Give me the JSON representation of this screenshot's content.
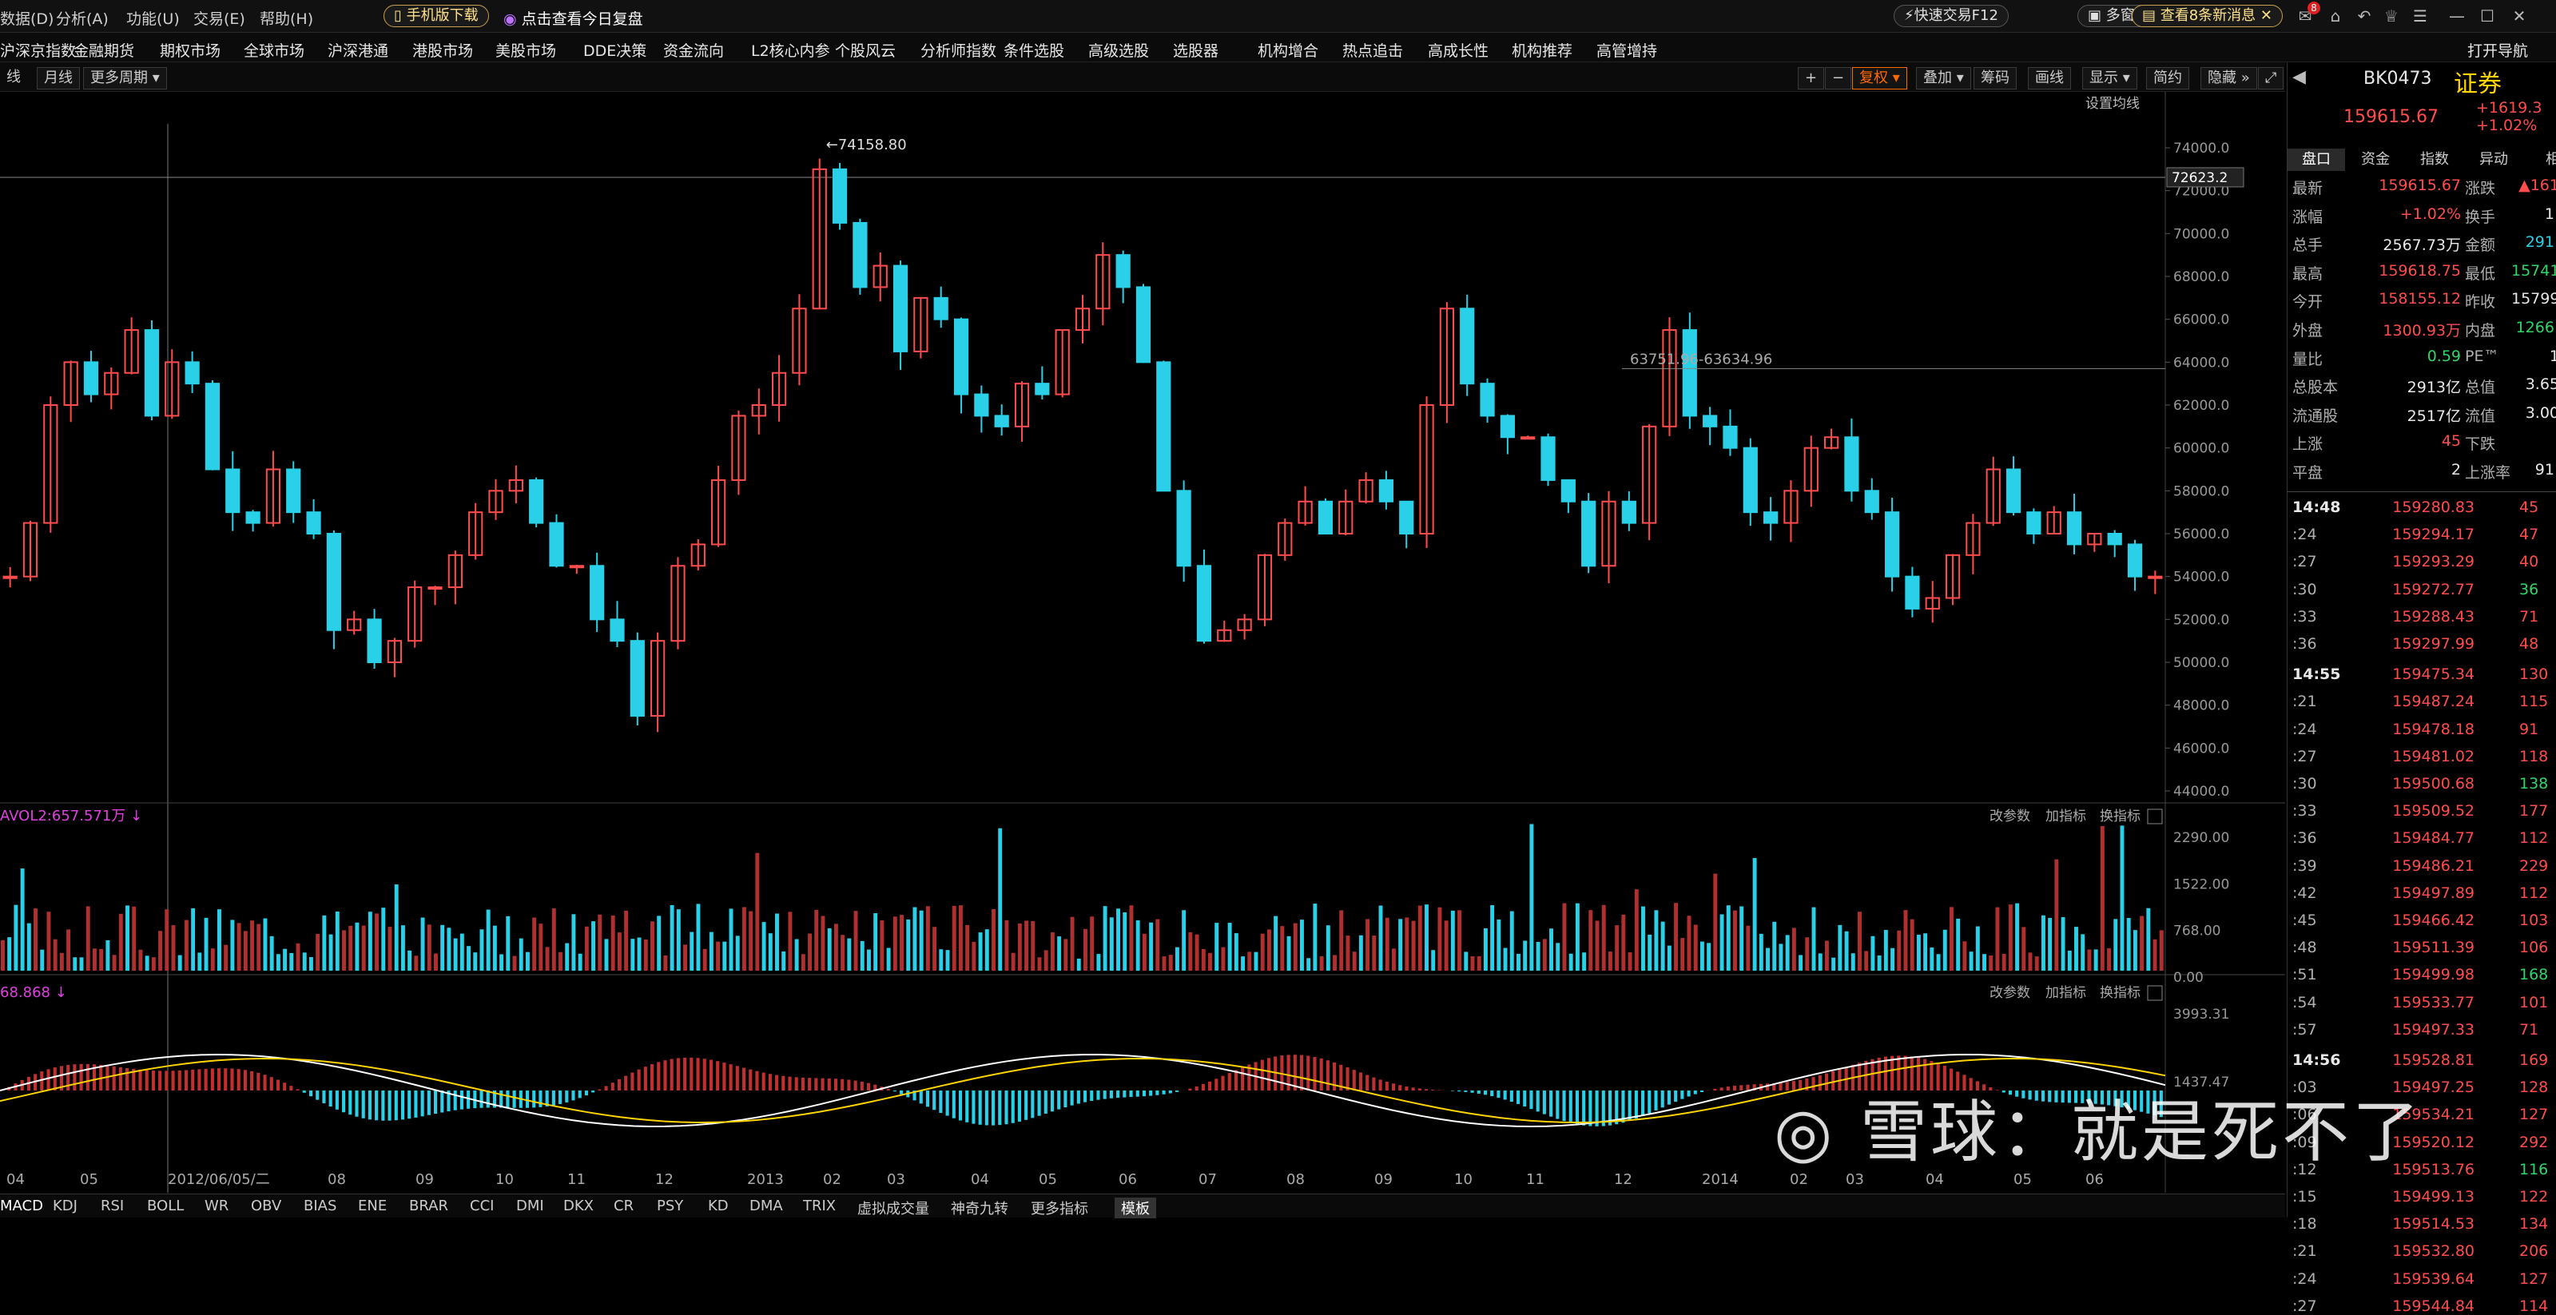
{
  "menubar": {
    "items": [
      "数据(D)",
      "分析(A)",
      "功能(U)",
      "交易(E)",
      "帮助(H)"
    ],
    "mobile_download": "手机版下载",
    "review": "点击查看今日复盘",
    "quick_trade": "快速交易F12",
    "multi_window": "多窗口",
    "messages": "查看8条新消息",
    "badge": "8"
  },
  "navbar": {
    "items": [
      "沪深京指数",
      "金融期货",
      "期权市场",
      "全球市场",
      "沪深港通",
      "港股市场",
      "美股市场",
      "DDE决策",
      "资金流向",
      "L2核心内参",
      "个股风云",
      "分析师指数",
      "条件选股",
      "高级选股",
      "选股器",
      "机构增合",
      "热点追击",
      "高成长性",
      "机构推荐",
      "高管增持"
    ],
    "right": "打开导航"
  },
  "toolbar": {
    "left": [
      "线",
      "月线",
      "更多周期"
    ],
    "right": [
      "+",
      "−",
      "复权",
      "叠加",
      "筹码",
      "画线",
      "显示",
      "简约",
      "隐藏"
    ],
    "ma_settings": "设置均线"
  },
  "chart_data": [
    {
      "type": "candlestick",
      "title": "",
      "ylim": [
        44000,
        74000
      ],
      "y_ticks": [
        "74000.0",
        "72000.0",
        "70000.0",
        "68000.0",
        "66000.0",
        "64000.0",
        "62000.0",
        "60000.0",
        "58000.0",
        "56000.0",
        "54000.0",
        "52000.0",
        "50000.0",
        "48000.0",
        "46000.0",
        "44000.0"
      ],
      "x_ticks": [
        "04",
        "05",
        "2012/06/05/二",
        "08",
        "09",
        "10",
        "11",
        "12",
        "2013",
        "02",
        "03",
        "04",
        "05",
        "06",
        "07",
        "08",
        "09",
        "10",
        "11",
        "12",
        "2014",
        "02",
        "03",
        "04",
        "05",
        "06"
      ],
      "annotations": [
        "74158.80",
        "63751.96-63634.96"
      ],
      "crosshair_price": "72623.2",
      "close_path": [
        54000,
        56500,
        62000,
        64000,
        62500,
        63500,
        65500,
        61500,
        64000,
        63000,
        59000,
        57000,
        56500,
        59000,
        57000,
        56000,
        51500,
        52000,
        50000,
        51000,
        53500,
        53500,
        55000,
        57000,
        58000,
        58500,
        56500,
        54500,
        54500,
        52000,
        51000,
        47500,
        51000,
        54500,
        55500,
        58500,
        61500,
        62000,
        63500,
        66500,
        73000,
        70500,
        67500,
        68500,
        64500,
        67000,
        66000,
        62500,
        61500,
        61000,
        63000,
        62500,
        65500,
        66500,
        69000,
        67500,
        64000,
        58000,
        54500,
        51000,
        51500,
        52000,
        55000,
        56500,
        57500,
        56000,
        57500,
        58500,
        57500,
        56000,
        62000,
        66500,
        63000,
        61500,
        60500,
        60500,
        58500,
        57500,
        54500,
        57500,
        56500,
        61000,
        65500,
        61500,
        61000,
        60000,
        57000,
        56500,
        58000,
        60000,
        60500,
        58000,
        57000,
        54000,
        52500,
        53000,
        55000,
        56500,
        59000,
        57000,
        56000,
        57000,
        55500,
        56000,
        55500,
        54000,
        54000
      ],
      "volume_label": "AVOL2:657.571万",
      "volume_ticks": [
        "2290.00",
        "1522.00",
        "768.00",
        "0.00"
      ],
      "macd_label": "68.868",
      "macd_ticks": [
        "3993.31",
        "1437.47"
      ],
      "sub_actions": [
        "改参数",
        "加指标",
        "换指标"
      ]
    }
  ],
  "panel": {
    "code": "BK0473",
    "name": "证券",
    "price": "159615.67",
    "change": "+1619.3",
    "change_pct": "+1.02%",
    "tabs": [
      "盘口",
      "资金",
      "指数",
      "异动",
      "相"
    ],
    "quote": [
      [
        "最新",
        "159615.67",
        "red",
        "涨跌",
        "▲161",
        "red"
      ],
      [
        "涨幅",
        "+1.02%",
        "red",
        "换手",
        "1.",
        "wht"
      ],
      [
        "总手",
        "2567.73万",
        "wht",
        "金额",
        "291.",
        "cyan"
      ],
      [
        "最高",
        "159618.75",
        "red",
        "最低",
        "15741",
        "grn"
      ],
      [
        "今开",
        "158155.12",
        "red",
        "昨收",
        "15799",
        "wht"
      ],
      [
        "外盘",
        "1300.93万",
        "red",
        "内盘",
        "1266.",
        "grn"
      ],
      [
        "量比",
        "0.59",
        "grn",
        "PE™",
        "1",
        "wht"
      ],
      [
        "总股本",
        "2913亿",
        "wht",
        "总值",
        "3.65",
        "wht"
      ],
      [
        "流通股",
        "2517亿",
        "wht",
        "流值",
        "3.00",
        "wht"
      ],
      [
        "上涨",
        "45",
        "red",
        "下跌",
        "",
        "wht"
      ],
      [
        "平盘",
        "2",
        "wht",
        "上涨率",
        "91.",
        "wht"
      ]
    ],
    "ticks": [
      [
        "14:48",
        "159280.83",
        "45"
      ],
      [
        ":24",
        "159294.17",
        "47"
      ],
      [
        ":27",
        "159293.29",
        "40"
      ],
      [
        ":30",
        "159272.77",
        "36"
      ],
      [
        ":33",
        "159288.43",
        "71"
      ],
      [
        ":36",
        "159297.99",
        "48"
      ],
      [
        "14:55",
        "159475.34",
        "130"
      ],
      [
        ":21",
        "159487.24",
        "115"
      ],
      [
        ":24",
        "159478.18",
        "91"
      ],
      [
        ":27",
        "159481.02",
        "118"
      ],
      [
        ":30",
        "159500.68",
        "138"
      ],
      [
        ":33",
        "159509.52",
        "177"
      ],
      [
        ":36",
        "159484.77",
        "112"
      ],
      [
        ":39",
        "159486.21",
        "229"
      ],
      [
        ":42",
        "159497.89",
        "112"
      ],
      [
        ":45",
        "159466.42",
        "103"
      ],
      [
        ":48",
        "159511.39",
        "106"
      ],
      [
        ":51",
        "159499.98",
        "168"
      ],
      [
        ":54",
        "159533.77",
        "101"
      ],
      [
        ":57",
        "159497.33",
        "71"
      ],
      [
        "14:56",
        "159528.81",
        "169"
      ],
      [
        ":03",
        "159497.25",
        "128"
      ],
      [
        ":06",
        "159534.21",
        "127"
      ],
      [
        ":09",
        "159520.12",
        "292"
      ],
      [
        ":12",
        "159513.76",
        "116"
      ],
      [
        ":15",
        "159499.13",
        "122"
      ],
      [
        ":18",
        "159514.53",
        "134"
      ],
      [
        ":21",
        "159532.80",
        "206"
      ],
      [
        ":24",
        "159539.64",
        "127"
      ],
      [
        ":27",
        "159544.84",
        "114"
      ]
    ]
  },
  "bottom_tabs": [
    "MACD",
    "KDJ",
    "RSI",
    "BOLL",
    "WR",
    "OBV",
    "BIAS",
    "ENE",
    "BRAR",
    "CCI",
    "DMI",
    "DKX",
    "CR",
    "PSY",
    "KD",
    "DMA",
    "TRIX",
    "虚拟成交量",
    "神奇九转",
    "更多指标",
    "模板"
  ],
  "watermark": "雪球：就是死不了"
}
